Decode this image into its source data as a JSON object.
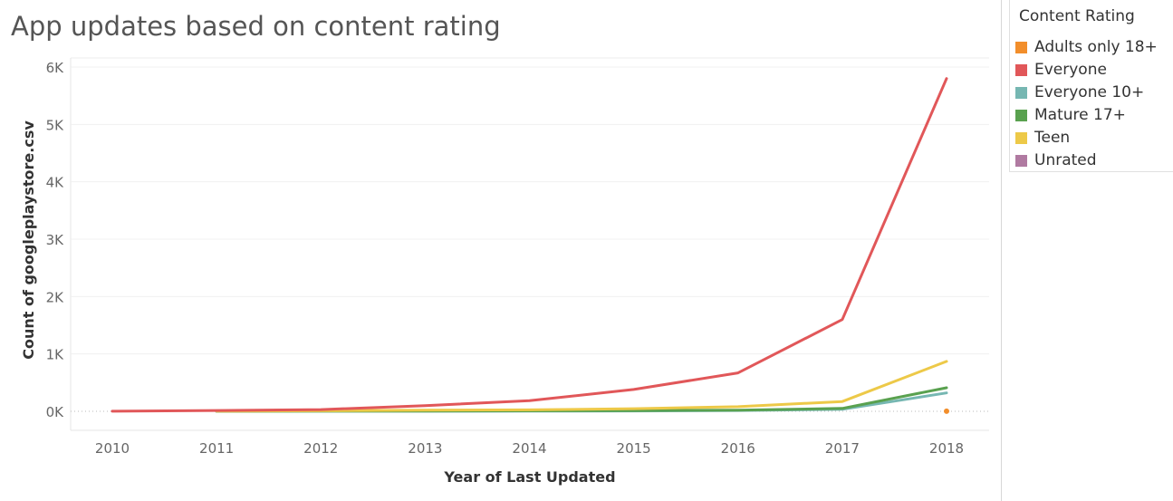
{
  "title": "App updates based on content rating",
  "legend": {
    "title": "Content Rating",
    "items": [
      {
        "label": "Adults only 18+",
        "color": "#f28e2b"
      },
      {
        "label": "Everyone",
        "color": "#e15759"
      },
      {
        "label": "Everyone 10+",
        "color": "#76b7b2"
      },
      {
        "label": "Mature 17+",
        "color": "#59a14f"
      },
      {
        "label": "Teen",
        "color": "#edc948"
      },
      {
        "label": "Unrated",
        "color": "#b07aa1"
      }
    ]
  },
  "chart_data": {
    "type": "line",
    "title": "App updates based on content rating",
    "xlabel": "Year of Last Updated",
    "ylabel": "Count of googleplaystore.csv",
    "x": [
      2010,
      2011,
      2012,
      2013,
      2014,
      2015,
      2016,
      2017,
      2018
    ],
    "x_tick_labels": [
      "2010",
      "2011",
      "2012",
      "2013",
      "2014",
      "2015",
      "2016",
      "2017",
      "2018"
    ],
    "y_tick_values": [
      0,
      1000,
      2000,
      3000,
      4000,
      5000,
      6000
    ],
    "y_tick_labels": [
      "0K",
      "1K",
      "2K",
      "3K",
      "4K",
      "5K",
      "6K"
    ],
    "ylim": [
      -150,
      6000
    ],
    "grid": true,
    "legend_position": "right",
    "series": [
      {
        "name": "Everyone",
        "color": "#e15759",
        "x": [
          2010,
          2011,
          2012,
          2013,
          2014,
          2015,
          2016,
          2017,
          2018
        ],
        "values": [
          1,
          15,
          30,
          100,
          185,
          380,
          670,
          1600,
          5800
        ]
      },
      {
        "name": "Teen",
        "color": "#edc948",
        "x": [
          2011,
          2012,
          2013,
          2014,
          2015,
          2016,
          2017,
          2018
        ],
        "values": [
          3,
          10,
          20,
          25,
          45,
          80,
          170,
          870
        ]
      },
      {
        "name": "Mature 17+",
        "color": "#59a14f",
        "x": [
          2011,
          2012,
          2013,
          2014,
          2015,
          2016,
          2017,
          2018
        ],
        "values": [
          1,
          3,
          5,
          8,
          12,
          20,
          50,
          410
        ]
      },
      {
        "name": "Everyone 10+",
        "color": "#76b7b2",
        "x": [
          2011,
          2012,
          2013,
          2014,
          2015,
          2016,
          2017,
          2018
        ],
        "values": [
          0,
          1,
          2,
          3,
          6,
          15,
          35,
          320
        ]
      },
      {
        "name": "Adults only 18+",
        "color": "#f28e2b",
        "x": [
          2018
        ],
        "values": [
          2
        ]
      },
      {
        "name": "Unrated",
        "color": "#b07aa1",
        "x": [],
        "values": []
      }
    ]
  }
}
